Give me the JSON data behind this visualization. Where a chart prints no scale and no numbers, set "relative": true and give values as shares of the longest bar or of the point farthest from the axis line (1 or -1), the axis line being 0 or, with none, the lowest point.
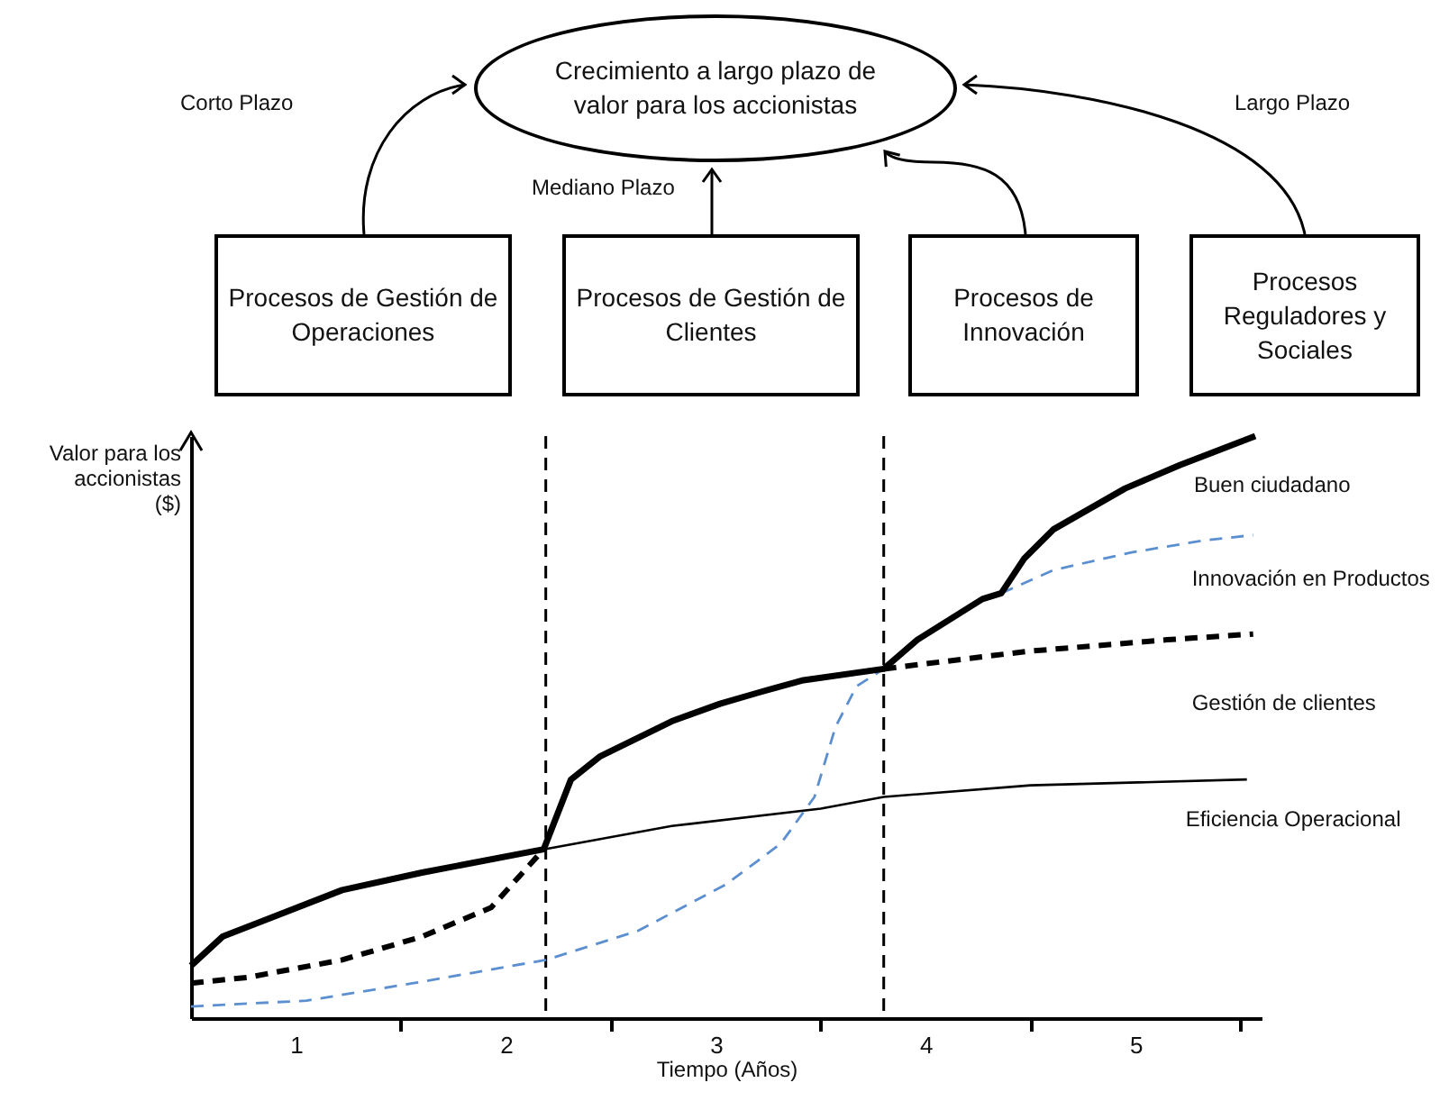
{
  "chart_data": {
    "type": "line",
    "relative": true,
    "xlabel": "Tiempo (Años)",
    "ylabel": "Valor para los accionistas ($)",
    "xlim": [
      0,
      5.1
    ],
    "xticks": [
      {
        "value": 0.5,
        "label": "1"
      },
      {
        "value": 1,
        "label": null
      },
      {
        "value": 1.5,
        "label": "2"
      },
      {
        "value": 2,
        "label": null
      },
      {
        "value": 2.5,
        "label": "3"
      },
      {
        "value": 3,
        "label": null
      },
      {
        "value": 3.5,
        "label": "4"
      },
      {
        "value": 4,
        "label": null
      },
      {
        "value": 4.5,
        "label": "5"
      },
      {
        "value": 5,
        "label": null
      }
    ],
    "series": [
      {
        "name": "Buen ciudadano",
        "color": "#000000",
        "line_style": "solid",
        "x": [
          0,
          0.15,
          0.72,
          1.1,
          1.68,
          1.81,
          1.95,
          2.29,
          2.52,
          2.71,
          2.91,
          3.3,
          3.46,
          3.77,
          3.86,
          3.97,
          4.11,
          4.45,
          4.71,
          5.07
        ],
        "values": [
          0.09,
          0.14,
          0.22,
          0.25,
          0.29,
          0.41,
          0.45,
          0.51,
          0.54,
          0.56,
          0.58,
          0.6,
          0.65,
          0.72,
          0.73,
          0.79,
          0.84,
          0.91,
          0.95,
          1
        ]
      },
      {
        "name": "Innovación en Productos",
        "color": "#5b8fd0",
        "line_style": "dashed",
        "x": [
          0,
          0.55,
          1.06,
          1.69,
          2.13,
          2.55,
          2.81,
          2.97,
          3.07,
          3.17,
          3.3,
          3.58,
          3.86,
          4.11,
          4.48,
          4.81,
          5.06
        ],
        "values": [
          0.02,
          0.03,
          0.06,
          0.1,
          0.15,
          0.23,
          0.3,
          0.38,
          0.5,
          0.57,
          0.6,
          null,
          0.73,
          0.77,
          0.8,
          0.82,
          0.83
        ]
      },
      {
        "name": "Gestión de clientes",
        "color": "#000000",
        "line_style": "dashed",
        "x": [
          0,
          0.27,
          0.72,
          1.1,
          1.43,
          1.68,
          2.5,
          3.3,
          3.98,
          4.65,
          5.06
        ],
        "values": [
          0.06,
          0.07,
          0.1,
          0.14,
          0.19,
          0.29,
          null,
          0.6,
          0.63,
          0.65,
          0.66
        ]
      },
      {
        "name": "Eficiencia Operacional",
        "color": "#000000",
        "line_style": "solid",
        "x": [
          1.68,
          2.29,
          3,
          3.3,
          4,
          5.03
        ],
        "values": [
          0.29,
          0.33,
          0.36,
          0.38,
          0.4,
          0.41
        ]
      }
    ],
    "ref_lines": [
      {
        "axis": "x",
        "value": 1.69,
        "color": "#000000",
        "line_style": "dashed"
      },
      {
        "axis": "x",
        "value": 3.3,
        "color": "#000000",
        "line_style": "dashed"
      }
    ],
    "annotations": [
      "Crecimiento a largo plazo de valor para los accionistas",
      "Procesos de Gestión de Operaciones",
      "Procesos de Gestión de Clientes",
      "Procesos de Innovación",
      "Procesos Reguladores y Sociales",
      "Corto Plazo",
      "Mediano Plazo",
      "Largo Plazo"
    ],
    "grid": false,
    "marker": "none"
  }
}
